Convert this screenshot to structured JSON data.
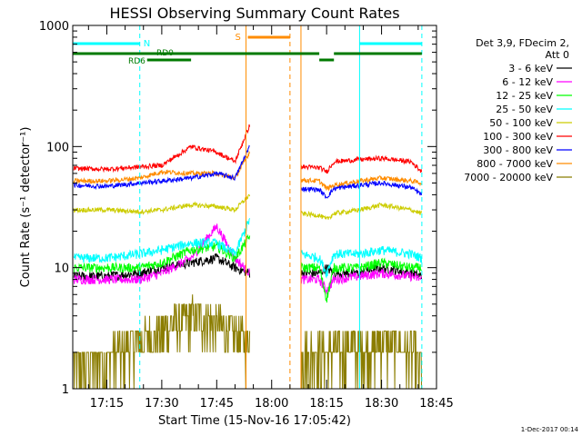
{
  "chart_data": {
    "type": "line",
    "title": "HESSI Observing Summary Count Rates",
    "xlabel": "Start Time (15-Nov-16 17:05:42)",
    "ylabel": "Count Rate (s⁻¹ detector⁻¹)",
    "yscale": "log",
    "ylim": [
      1,
      1000
    ],
    "xlim": [
      "17:05:42",
      "18:45"
    ],
    "x_tick_labels": [
      "17:15",
      "17:30",
      "17:45",
      "18:00",
      "18:15",
      "18:30",
      "18:45"
    ],
    "y_tick_labels": [
      "1",
      "10",
      "100",
      "1000"
    ],
    "footer_date": "1-Dec-2017 00:14",
    "legend": {
      "placement": "right",
      "header": [
        "Det 3,9, FDecim 2,",
        "Att 0"
      ],
      "entries": [
        {
          "name": "3 - 6 keV",
          "color": "#000000"
        },
        {
          "name": "6 - 12 keV",
          "color": "#ff00ff"
        },
        {
          "name": "12 - 25 keV",
          "color": "#00ff00"
        },
        {
          "name": "25 - 50 keV",
          "color": "#00ffff"
        },
        {
          "name": "50 - 100 keV",
          "color": "#cccc00"
        },
        {
          "name": "100 - 300 keV",
          "color": "#ff0000"
        },
        {
          "name": "300 - 800 keV",
          "color": "#0000ff"
        },
        {
          "name": "800 - 7000 keV",
          "color": "#ff8c00"
        },
        {
          "name": "7000 - 20000 keV",
          "color": "#8b7d00"
        }
      ]
    },
    "annotations": {
      "night": {
        "label": "N",
        "color": "#00ffff",
        "intervals": [
          [
            "17:05:42",
            "17:24"
          ],
          [
            "18:24",
            "18:41"
          ]
        ]
      },
      "saa": {
        "label": "S",
        "color": "#ff8c00",
        "intervals": [
          [
            "17:53",
            "18:05"
          ]
        ]
      },
      "decimation_labels": [
        {
          "label": "RD6",
          "color": "#007a00"
        },
        {
          "label": "RD0",
          "color": "#007a00"
        }
      ],
      "decimation_bars": [
        {
          "row": "upper",
          "intervals": [
            [
              "17:05:42",
              "18:13"
            ],
            [
              "18:17",
              "18:41"
            ]
          ]
        },
        {
          "row": "lower",
          "intervals": [
            [
              "17:26",
              "17:38"
            ],
            [
              "18:13",
              "18:17"
            ]
          ]
        }
      ],
      "vertical_lines": [
        {
          "time": "17:24",
          "color": "#00ffff",
          "style": "dashed"
        },
        {
          "time": "17:53",
          "color": "#ff8c00",
          "style": "solid"
        },
        {
          "time": "18:05",
          "color": "#ff8c00",
          "style": "dashed"
        },
        {
          "time": "18:08",
          "color": "#ff8c00",
          "style": "solid"
        },
        {
          "time": "18:24",
          "color": "#00ffff",
          "style": "solid"
        },
        {
          "time": "18:41",
          "color": "#00ffff",
          "style": "dashed"
        }
      ]
    },
    "gaps": [
      [
        "17:54",
        "18:08"
      ]
    ],
    "series": [
      {
        "name": "3 - 6 keV",
        "color": "#000000",
        "x": [
          "17:06",
          "17:15",
          "17:24",
          "17:30",
          "17:38",
          "17:45",
          "17:50",
          "17:54",
          "18:08",
          "18:13",
          "18:15",
          "18:17",
          "18:24",
          "18:30",
          "18:38",
          "18:41"
        ],
        "values": [
          8.5,
          8.5,
          9,
          10,
          11,
          12,
          10,
          9,
          9,
          9,
          10,
          9,
          9,
          10,
          9,
          8.5
        ]
      },
      {
        "name": "6 - 12 keV",
        "color": "#ff00ff",
        "x": [
          "17:06",
          "17:15",
          "17:24",
          "17:30",
          "17:38",
          "17:45",
          "17:50",
          "17:54",
          "18:08",
          "18:13",
          "18:15",
          "18:17",
          "18:24",
          "18:30",
          "18:38",
          "18:41"
        ],
        "values": [
          8,
          8,
          8,
          9,
          12,
          22,
          12,
          9,
          8,
          8,
          6.5,
          8,
          8.5,
          9,
          8.5,
          8
        ]
      },
      {
        "name": "12 - 25 keV",
        "color": "#00ff00",
        "x": [
          "17:06",
          "17:15",
          "17:24",
          "17:30",
          "17:38",
          "17:45",
          "17:50",
          "17:54",
          "18:08",
          "18:13",
          "18:15",
          "18:17",
          "18:24",
          "18:30",
          "18:38",
          "18:41"
        ],
        "values": [
          10,
          10,
          10,
          11,
          14,
          15,
          12,
          18,
          10,
          10,
          5.5,
          10,
          10,
          11,
          10,
          10
        ]
      },
      {
        "name": "25 - 50 keV",
        "color": "#00ffff",
        "x": [
          "17:06",
          "17:15",
          "17:24",
          "17:30",
          "17:38",
          "17:45",
          "17:50",
          "17:54",
          "18:08",
          "18:13",
          "18:15",
          "18:17",
          "18:24",
          "18:30",
          "18:38",
          "18:41"
        ],
        "values": [
          12,
          12,
          13,
          14,
          16,
          16,
          13,
          25,
          13,
          12,
          9,
          13,
          13,
          14,
          13,
          12
        ]
      },
      {
        "name": "50 - 100 keV",
        "color": "#cccc00",
        "x": [
          "17:06",
          "17:15",
          "17:24",
          "17:30",
          "17:38",
          "17:45",
          "17:50",
          "17:54",
          "18:08",
          "18:13",
          "18:15",
          "18:17",
          "18:24",
          "18:30",
          "18:38",
          "18:41"
        ],
        "values": [
          30,
          30,
          29,
          30,
          33,
          32,
          30,
          40,
          28,
          27,
          25,
          28,
          30,
          33,
          30,
          28
        ]
      },
      {
        "name": "100 - 300 keV",
        "color": "#ff0000",
        "x": [
          "17:06",
          "17:15",
          "17:24",
          "17:30",
          "17:38",
          "17:45",
          "17:50",
          "17:54",
          "18:08",
          "18:13",
          "18:15",
          "18:17",
          "18:24",
          "18:30",
          "18:38",
          "18:41"
        ],
        "values": [
          66,
          65,
          68,
          70,
          100,
          90,
          75,
          150,
          68,
          67,
          62,
          75,
          78,
          80,
          75,
          62
        ]
      },
      {
        "name": "300 - 800 keV",
        "color": "#0000ff",
        "x": [
          "17:06",
          "17:15",
          "17:24",
          "17:30",
          "17:38",
          "17:45",
          "17:50",
          "17:54",
          "18:08",
          "18:13",
          "18:15",
          "18:17",
          "18:24",
          "18:30",
          "18:38",
          "18:41"
        ],
        "values": [
          48,
          47,
          50,
          52,
          55,
          60,
          55,
          100,
          45,
          44,
          38,
          45,
          48,
          50,
          46,
          40
        ]
      },
      {
        "name": "800 - 7000 keV",
        "color": "#ff8c00",
        "x": [
          "17:06",
          "17:15",
          "17:24",
          "17:30",
          "17:38",
          "17:45",
          "17:50",
          "17:54",
          "18:08",
          "18:13",
          "18:15",
          "18:17",
          "18:24",
          "18:30",
          "18:38",
          "18:41"
        ],
        "values": [
          52,
          52,
          55,
          62,
          60,
          60,
          55,
          90,
          53,
          52,
          45,
          48,
          52,
          55,
          52,
          50
        ]
      },
      {
        "name": "7000 - 20000 keV",
        "color": "#8b7d00",
        "x": [
          "17:06",
          "17:15",
          "17:24",
          "17:30",
          "17:38",
          "17:45",
          "17:50",
          "17:54",
          "18:08",
          "18:13",
          "18:15",
          "18:17",
          "18:24",
          "18:30",
          "18:38",
          "18:41"
        ],
        "values": [
          1.6,
          1.8,
          2.5,
          3,
          4,
          3.5,
          2.8,
          2.5,
          2,
          2,
          1.8,
          2,
          2.2,
          2.4,
          2,
          1.6
        ]
      }
    ]
  }
}
